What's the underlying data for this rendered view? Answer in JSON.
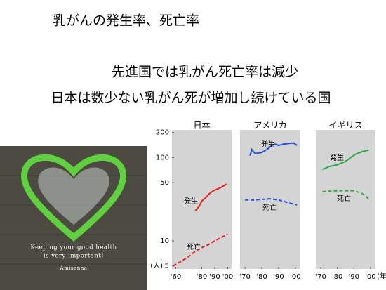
{
  "title": "乳がんの発生率、死亡率",
  "lines": [
    "先進国では乳がん死亡率は減少",
    "日本は数少ない乳がん死が増加し続けている国"
  ],
  "image_text": [
    "Keeping your good health",
    "is very important!",
    "Amisanna"
  ],
  "chart_data": [
    {
      "type": "line",
      "title": "日本",
      "log_y": true,
      "ylabel": "(人)",
      "ylim": [
        4.6,
        215
      ],
      "yticks": [
        5,
        10,
        50,
        100,
        200
      ],
      "xlim": [
        1957,
        2003
      ],
      "xticks": [
        {
          "value": 1960,
          "label": "'60"
        },
        {
          "value": 1980,
          "label": "'80"
        },
        {
          "value": 1990,
          "label": "'90"
        },
        {
          "value": 2000,
          "label": "'00"
        }
      ],
      "series": [
        {
          "name": "発生",
          "color": "#e8201e",
          "dashed": false,
          "x": [
            1975,
            1978,
            1980,
            1983,
            1986,
            1989,
            1992,
            1995,
            1999
          ],
          "values": [
            23,
            26,
            30,
            33,
            37,
            40,
            42,
            44,
            48
          ]
        },
        {
          "name": "死亡",
          "color": "#e8201e",
          "dashed": true,
          "x": [
            1958,
            1965,
            1970,
            1975,
            1980,
            1985,
            1990,
            1995,
            2000
          ],
          "values": [
            5,
            5.8,
            6.5,
            7.5,
            8.3,
            9,
            10,
            11,
            12
          ]
        }
      ]
    },
    {
      "type": "line",
      "title": "アメリカ",
      "log_y": true,
      "ylim": [
        4.6,
        215
      ],
      "xlim": [
        1967,
        2003
      ],
      "xticks": [
        {
          "value": 1970,
          "label": "'70"
        },
        {
          "value": 1980,
          "label": "'80"
        },
        {
          "value": 1990,
          "label": "'90"
        },
        {
          "value": 2000,
          "label": "'00"
        }
      ],
      "series": [
        {
          "name": "発生",
          "color": "#1f4fd8",
          "dashed": false,
          "x": [
            1973,
            1974,
            1976,
            1980,
            1983,
            1986,
            1988,
            1990,
            1993,
            1996,
            1999,
            2001
          ],
          "values": [
            105,
            125,
            112,
            115,
            125,
            140,
            145,
            140,
            145,
            148,
            150,
            140
          ]
        },
        {
          "name": "死亡",
          "color": "#1f4fd8",
          "dashed": true,
          "x": [
            1970,
            1975,
            1980,
            1985,
            1990,
            1995,
            2001
          ],
          "values": [
            31,
            31,
            31.5,
            32,
            31,
            29,
            27
          ]
        }
      ]
    },
    {
      "type": "line",
      "title": "イギリス",
      "log_y": true,
      "xlabel": "(年)",
      "ylim": [
        4.6,
        215
      ],
      "xlim": [
        1967,
        2003
      ],
      "xticks": [
        {
          "value": 1970,
          "label": "'70"
        },
        {
          "value": 1980,
          "label": "'80"
        },
        {
          "value": 1990,
          "label": "'90"
        },
        {
          "value": 2000,
          "label": "'00"
        }
      ],
      "series": [
        {
          "name": "発生",
          "color": "#2fa84a",
          "dashed": false,
          "x": [
            1971,
            1975,
            1980,
            1985,
            1988,
            1991,
            1995,
            1998,
            1999
          ],
          "values": [
            72,
            78,
            82,
            90,
            100,
            110,
            118,
            122,
            122
          ]
        },
        {
          "name": "死亡",
          "color": "#2fa84a",
          "dashed": true,
          "x": [
            1971,
            1980,
            1990,
            1995,
            1999
          ],
          "values": [
            39,
            40,
            40,
            37,
            32
          ]
        }
      ]
    }
  ]
}
